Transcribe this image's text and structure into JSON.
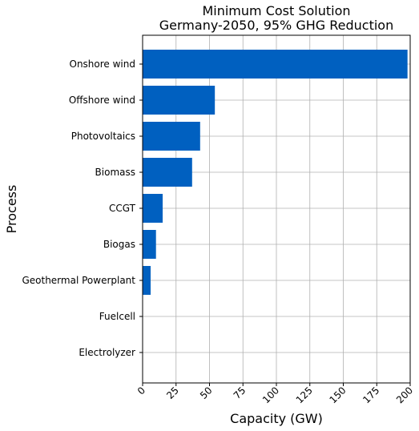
{
  "chart_data": {
    "type": "bar",
    "orientation": "horizontal",
    "title": "Minimum Cost Solution",
    "subtitle": "Germany-2050, 95% GHG Reduction",
    "xlabel": "Capacity (GW)",
    "ylabel": "Process",
    "categories": [
      "Onshore wind",
      "Offshore wind",
      "Photovoltaics",
      "Biomass",
      "CCGT",
      "Biogas",
      "Geothermal Powerplant",
      "Fuelcell",
      "Electrolyzer"
    ],
    "values": [
      198,
      54,
      43,
      37,
      15,
      10,
      6,
      0,
      0
    ],
    "xlim": [
      0,
      200
    ],
    "xticks": [
      "0",
      "25",
      "50",
      "75",
      "100",
      "125",
      "150",
      "175",
      "200"
    ],
    "grid": true,
    "color": "#0060c0"
  }
}
